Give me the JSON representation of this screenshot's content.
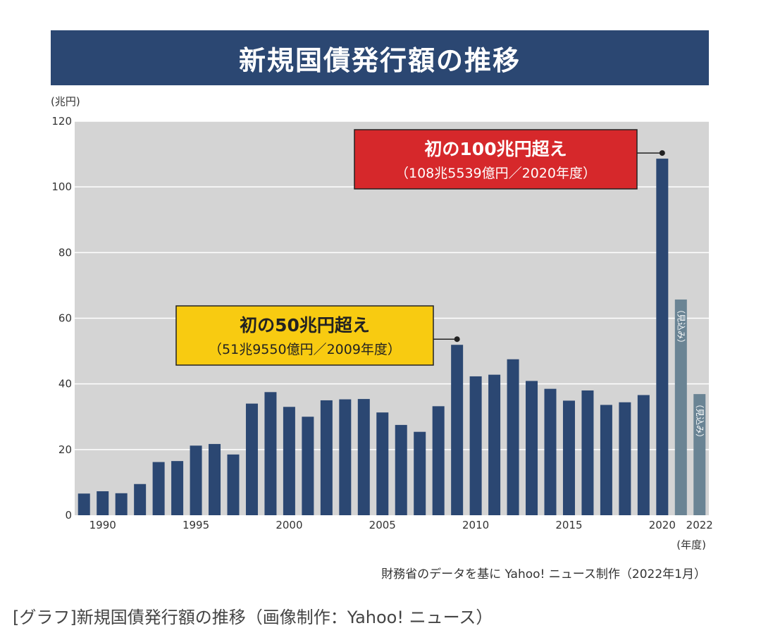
{
  "chart_data": {
    "type": "bar",
    "title": "新規国債発行額の推移",
    "ylabel": "(兆円)",
    "xlabel": "(年度)",
    "ylim": [
      0,
      120
    ],
    "yticks": [
      0,
      20,
      40,
      60,
      80,
      100,
      120
    ],
    "xtick_labels": [
      "1990",
      "1995",
      "2000",
      "2005",
      "2010",
      "2015",
      "2020",
      "2022"
    ],
    "grid": true,
    "categories": [
      "1989",
      "1990",
      "1991",
      "1992",
      "1993",
      "1994",
      "1995",
      "1996",
      "1997",
      "1998",
      "1999",
      "2000",
      "2001",
      "2002",
      "2003",
      "2004",
      "2005",
      "2006",
      "2007",
      "2008",
      "2009",
      "2010",
      "2011",
      "2012",
      "2013",
      "2014",
      "2015",
      "2016",
      "2017",
      "2018",
      "2019",
      "2020",
      "2021",
      "2022"
    ],
    "values": [
      6.6,
      7.3,
      6.7,
      9.5,
      16.2,
      16.5,
      21.2,
      21.7,
      18.5,
      34.0,
      37.5,
      33.0,
      30.0,
      35.0,
      35.3,
      35.4,
      31.3,
      27.5,
      25.4,
      33.2,
      51.9,
      42.3,
      42.8,
      47.5,
      40.9,
      38.5,
      34.9,
      38.0,
      33.6,
      34.4,
      36.6,
      108.6,
      65.7,
      36.9
    ],
    "estimate_label": "見込み",
    "estimated": [
      "2021",
      "2022"
    ],
    "colors": {
      "bar": "#2b4772",
      "estimate": "#6a8494",
      "plot_bg": "#d4d4d4",
      "gridline": "#ffffff"
    },
    "annotations": [
      {
        "year": "2009",
        "value": 51.9,
        "title": "初の50兆円超え",
        "detail": "（51兆9550億円／2009年度）",
        "background": "#f8cb11",
        "title_color": "#222222",
        "detail_color": "#222222"
      },
      {
        "year": "2020",
        "value": 108.6,
        "title": "初の100兆円超え",
        "detail": "（108兆5539億円／2020年度）",
        "background": "#d6282b",
        "title_color": "#ffffff",
        "detail_color": "#ffffff"
      }
    ]
  },
  "source": "財務省のデータを基に Yahoo! ニュース制作（2022年1月）",
  "caption": "[グラフ]新規国債発行額の推移（画像制作：Yahoo! ニュース）"
}
